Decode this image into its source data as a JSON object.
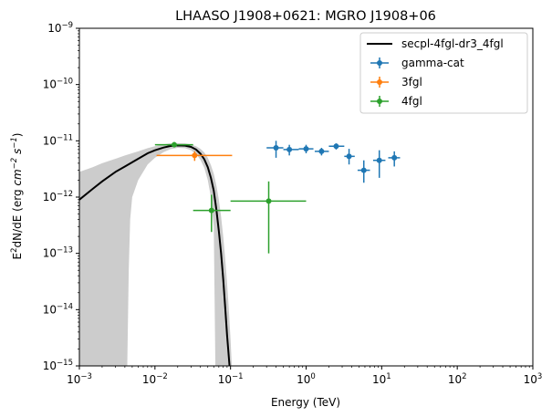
{
  "chart_data": {
    "type": "scatter",
    "title": "LHAASO J1908+0621: MGRO J1908+06",
    "xlabel": "Energy (TeV)",
    "ylabel": "E^2dN/dE (erg cm^-2 s^-1)",
    "xscale": "log",
    "yscale": "log",
    "xlim": [
      0.001,
      1000
    ],
    "ylim": [
      1e-15,
      1e-09
    ],
    "x_ticks": [
      {
        "value": 0.001,
        "mant": "10",
        "exp": "−3"
      },
      {
        "value": 0.01,
        "mant": "10",
        "exp": "−2"
      },
      {
        "value": 0.1,
        "mant": "10",
        "exp": "−1"
      },
      {
        "value": 1,
        "mant": "10",
        "exp": "0"
      },
      {
        "value": 10,
        "mant": "10",
        "exp": "1"
      },
      {
        "value": 100,
        "mant": "10",
        "exp": "2"
      },
      {
        "value": 1000,
        "mant": "10",
        "exp": "3"
      }
    ],
    "y_ticks": [
      {
        "value": 1e-15,
        "mant": "10",
        "exp": "−15"
      },
      {
        "value": 1e-14,
        "mant": "10",
        "exp": "−14"
      },
      {
        "value": 1e-13,
        "mant": "10",
        "exp": "−13"
      },
      {
        "value": 1e-12,
        "mant": "10",
        "exp": "−12"
      },
      {
        "value": 1e-11,
        "mant": "10",
        "exp": "−11"
      },
      {
        "value": 1e-10,
        "mant": "10",
        "exp": "−10"
      },
      {
        "value": 1e-09,
        "mant": "10",
        "exp": "−9"
      }
    ],
    "grid": false,
    "legend_position": "top-right",
    "model": {
      "name": "secpl-4fgl-dr3_4fgl",
      "color": "#000000",
      "points": [
        [
          0.001,
          9e-13
        ],
        [
          0.0015,
          1.4e-12
        ],
        [
          0.002,
          1.9e-12
        ],
        [
          0.003,
          2.8e-12
        ],
        [
          0.004,
          3.5e-12
        ],
        [
          0.006,
          4.8e-12
        ],
        [
          0.008,
          6e-12
        ],
        [
          0.01,
          6.8e-12
        ],
        [
          0.013,
          7.6e-12
        ],
        [
          0.016,
          8.1e-12
        ],
        [
          0.02,
          8.3e-12
        ],
        [
          0.025,
          8.2e-12
        ],
        [
          0.03,
          7.8e-12
        ],
        [
          0.035,
          7e-12
        ],
        [
          0.04,
          5.9e-12
        ],
        [
          0.045,
          4.7e-12
        ],
        [
          0.05,
          3.4e-12
        ],
        [
          0.055,
          2.2e-12
        ],
        [
          0.06,
          1.3e-12
        ],
        [
          0.065,
          6e-13
        ],
        [
          0.07,
          2.5e-13
        ],
        [
          0.075,
          1e-13
        ],
        [
          0.08,
          3.5e-14
        ],
        [
          0.085,
          1.1e-14
        ],
        [
          0.09,
          3.5e-15
        ],
        [
          0.097,
          1e-15
        ]
      ],
      "band_upper": [
        [
          0.001,
          2.8e-12
        ],
        [
          0.0015,
          3.4e-12
        ],
        [
          0.002,
          4e-12
        ],
        [
          0.003,
          4.8e-12
        ],
        [
          0.004,
          5.5e-12
        ],
        [
          0.006,
          6.5e-12
        ],
        [
          0.008,
          7.4e-12
        ],
        [
          0.01,
          8e-12
        ],
        [
          0.013,
          8.7e-12
        ],
        [
          0.016,
          9e-12
        ],
        [
          0.02,
          9.1e-12
        ],
        [
          0.025,
          9e-12
        ],
        [
          0.03,
          8.6e-12
        ],
        [
          0.035,
          8e-12
        ],
        [
          0.04,
          7.2e-12
        ],
        [
          0.045,
          6.2e-12
        ],
        [
          0.05,
          5e-12
        ],
        [
          0.055,
          3.7e-12
        ],
        [
          0.06,
          2.6e-12
        ],
        [
          0.065,
          1.6e-12
        ],
        [
          0.07,
          9e-13
        ],
        [
          0.075,
          4.5e-13
        ],
        [
          0.08,
          2e-13
        ],
        [
          0.085,
          8e-14
        ],
        [
          0.09,
          3e-14
        ],
        [
          0.095,
          1e-14
        ],
        [
          0.1,
          3e-15
        ],
        [
          0.104,
          1e-15
        ]
      ],
      "band_lower": [
        [
          0.0043,
          1e-15
        ],
        [
          0.0045,
          5e-14
        ],
        [
          0.0047,
          4e-13
        ],
        [
          0.005,
          1e-12
        ],
        [
          0.006,
          2e-12
        ],
        [
          0.008,
          3.8e-12
        ],
        [
          0.01,
          5e-12
        ],
        [
          0.013,
          6.3e-12
        ],
        [
          0.016,
          7.1e-12
        ],
        [
          0.02,
          7.5e-12
        ],
        [
          0.025,
          7.4e-12
        ],
        [
          0.03,
          6.8e-12
        ],
        [
          0.035,
          5.8e-12
        ],
        [
          0.04,
          4.6e-12
        ],
        [
          0.045,
          3.3e-12
        ],
        [
          0.05,
          2e-12
        ],
        [
          0.055,
          1e-12
        ],
        [
          0.06,
          3e-13
        ],
        [
          0.063,
          1e-15
        ]
      ]
    },
    "series": [
      {
        "name": "gamma-cat",
        "color": "#1f77b4",
        "points": [
          {
            "x": 0.4,
            "y": 7.5e-12,
            "xlo": 0.3,
            "xhi": 0.5,
            "ylo": 5e-12,
            "yhi": 1e-11
          },
          {
            "x": 0.6,
            "y": 7e-12,
            "xlo": 0.5,
            "xhi": 0.8,
            "ylo": 5.5e-12,
            "yhi": 8.5e-12
          },
          {
            "x": 1.0,
            "y": 7.2e-12,
            "xlo": 0.8,
            "xhi": 1.25,
            "ylo": 6e-12,
            "yhi": 8.5e-12
          },
          {
            "x": 1.6,
            "y": 6.5e-12,
            "xlo": 1.3,
            "xhi": 2.0,
            "ylo": 5.5e-12,
            "yhi": 7.5e-12
          },
          {
            "x": 2.5,
            "y": 8e-12,
            "xlo": 2.0,
            "xhi": 3.2,
            "ylo": 7e-12,
            "yhi": 9e-12
          },
          {
            "x": 3.7,
            "y": 5.3e-12,
            "xlo": 3.2,
            "xhi": 4.4,
            "ylo": 3.8e-12,
            "yhi": 7.2e-12
          },
          {
            "x": 5.8,
            "y": 3e-12,
            "xlo": 4.8,
            "xhi": 7.0,
            "ylo": 1.8e-12,
            "yhi": 4.5e-12
          },
          {
            "x": 9.3,
            "y": 4.5e-12,
            "xlo": 7.7,
            "xhi": 11.2,
            "ylo": 2.2e-12,
            "yhi": 6.8e-12
          },
          {
            "x": 14.7,
            "y": 5e-12,
            "xlo": 12.2,
            "xhi": 17.5,
            "ylo": 3.5e-12,
            "yhi": 6.5e-12
          }
        ]
      },
      {
        "name": "3fgl",
        "color": "#ff7f0e",
        "points": [
          {
            "x": 0.0335,
            "y": 5.5e-12,
            "xlo": 0.0105,
            "xhi": 0.105,
            "ylo": 4.4e-12,
            "yhi": 6.5e-12
          }
        ]
      },
      {
        "name": "4fgl",
        "color": "#2ca02c",
        "points": [
          {
            "x": 0.018,
            "y": 8.5e-12,
            "xlo": 0.01,
            "xhi": 0.032,
            "ylo": 7.8e-12,
            "yhi": 9.5e-12
          },
          {
            "x": 0.056,
            "y": 5.8e-13,
            "xlo": 0.032,
            "xhi": 0.1,
            "ylo": 2.4e-13,
            "yhi": 1.1e-12
          },
          {
            "x": 0.32,
            "y": 8.5e-13,
            "xlo": 0.1,
            "xhi": 1.0,
            "ylo": 1e-13,
            "yhi": 1.9e-12
          }
        ]
      }
    ]
  }
}
